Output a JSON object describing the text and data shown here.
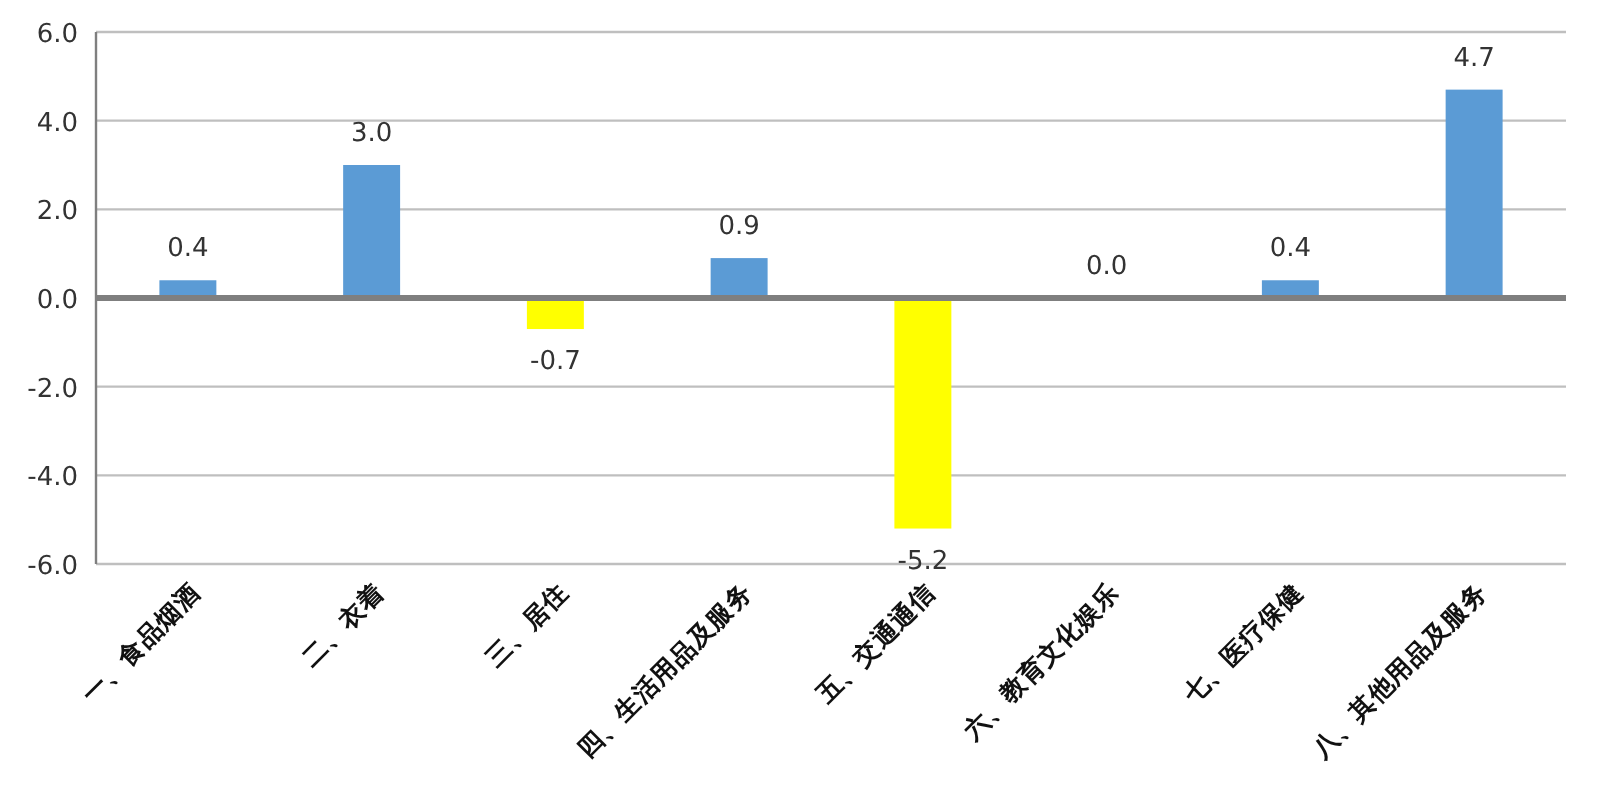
{
  "chart_data": {
    "type": "bar",
    "categories": [
      "一、食品烟酒",
      "二、衣着",
      "三、居住",
      "四、生活用品及服务",
      "五、交通通信",
      "六、教育文化娱乐",
      "七、医疗保健",
      "八、其他用品及服务"
    ],
    "values": [
      0.4,
      3.0,
      -0.7,
      0.9,
      -5.2,
      0.0,
      0.4,
      4.7
    ],
    "colors": [
      "#5b9bd5",
      "#5b9bd5",
      "#ffff00",
      "#5b9bd5",
      "#ffff00",
      "#ffff00",
      "#5b9bd5",
      "#5b9bd5"
    ],
    "value_labels": [
      "0.4",
      "3.0",
      "-0.7",
      "0.9",
      "-5.2",
      "0.0",
      "0.4",
      "4.7"
    ],
    "ylim": [
      -6,
      6
    ],
    "yticks": [
      {
        "value": -6,
        "label": "-6.0"
      },
      {
        "value": -4,
        "label": "-4.0"
      },
      {
        "value": -2,
        "label": "-2.0"
      },
      {
        "value": 0,
        "label": "0.0"
      },
      {
        "value": 2,
        "label": "2.0"
      },
      {
        "value": 4,
        "label": "4.0"
      },
      {
        "value": 6,
        "label": "6.0"
      }
    ],
    "grid": "y"
  }
}
